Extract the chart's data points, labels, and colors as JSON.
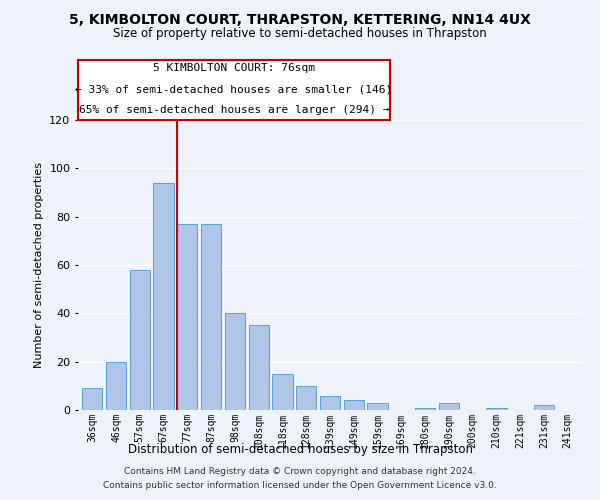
{
  "title": "5, KIMBOLTON COURT, THRAPSTON, KETTERING, NN14 4UX",
  "subtitle": "Size of property relative to semi-detached houses in Thrapston",
  "xlabel": "Distribution of semi-detached houses by size in Thrapston",
  "ylabel": "Number of semi-detached properties",
  "bar_labels": [
    "36sqm",
    "46sqm",
    "57sqm",
    "67sqm",
    "77sqm",
    "87sqm",
    "98sqm",
    "108sqm",
    "118sqm",
    "128sqm",
    "139sqm",
    "149sqm",
    "159sqm",
    "169sqm",
    "180sqm",
    "190sqm",
    "200sqm",
    "210sqm",
    "221sqm",
    "231sqm",
    "241sqm"
  ],
  "bar_values": [
    9,
    20,
    58,
    94,
    77,
    77,
    40,
    35,
    15,
    10,
    6,
    4,
    3,
    0,
    1,
    3,
    0,
    1,
    0,
    2,
    0
  ],
  "bar_color": "#aec6e8",
  "bar_edge_color": "#5a9fd4",
  "highlight_bar_index": 4,
  "highlight_line_color": "#cc0000",
  "ylim": [
    0,
    120
  ],
  "yticks": [
    0,
    20,
    40,
    60,
    80,
    100,
    120
  ],
  "annotation_title": "5 KIMBOLTON COURT: 76sqm",
  "annotation_line1": "← 33% of semi-detached houses are smaller (146)",
  "annotation_line2": "65% of semi-detached houses are larger (294) →",
  "annotation_box_color": "#ffffff",
  "annotation_box_edge_color": "#cc0000",
  "footer_line1": "Contains HM Land Registry data © Crown copyright and database right 2024.",
  "footer_line2": "Contains public sector information licensed under the Open Government Licence v3.0.",
  "background_color": "#eef2fa",
  "grid_color": "#ffffff"
}
